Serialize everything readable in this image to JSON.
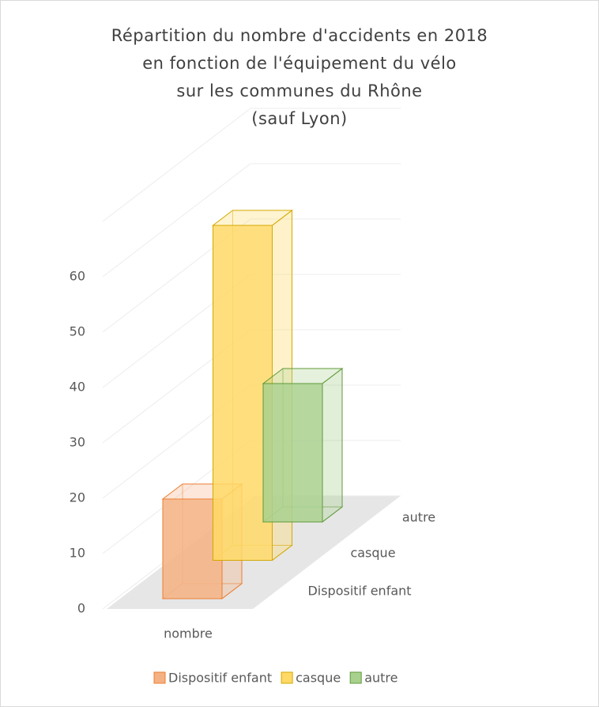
{
  "chart_data": {
    "type": "bar3d",
    "title": [
      "Répartition du nombre d'accidents en 2018",
      "en fonction de l'équipement du vélo",
      "sur les communes du Rhône",
      "(sauf Lyon)"
    ],
    "categories": [
      "nombre"
    ],
    "series": [
      {
        "name": "Dispositif enfant",
        "color": "#f4b183",
        "stroke": "#ed7d31",
        "values": [
          18
        ]
      },
      {
        "name": "casque",
        "color": "#ffd966",
        "stroke": "#d4a800",
        "values": [
          60.5
        ]
      },
      {
        "name": "autre",
        "color": "#a9d18e",
        "stroke": "#5f9a3a",
        "values": [
          25
        ]
      }
    ],
    "ylim": [
      0,
      70
    ],
    "yticks": [
      0,
      10,
      20,
      30,
      40,
      50,
      60
    ],
    "grid": true,
    "legend": "bottom"
  }
}
